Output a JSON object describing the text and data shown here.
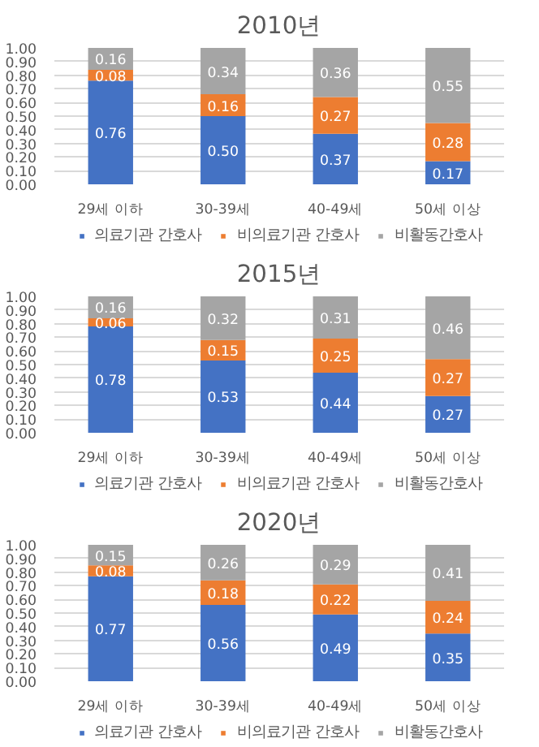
{
  "chart_data": [
    {
      "type": "bar",
      "title": "2010년",
      "stacked": true,
      "grid": "y",
      "legend": "bottom",
      "categories": [
        "29세 이하",
        "30-39세",
        "40-49세",
        "50세 이상"
      ],
      "ylim": [
        0,
        1
      ],
      "yticks": [
        {
          "value": 0,
          "label": "0.00"
        },
        {
          "value": 0.1,
          "label": "0.10"
        },
        {
          "value": 0.2,
          "label": "0.20"
        },
        {
          "value": 0.3,
          "label": "0.30"
        },
        {
          "value": 0.4,
          "label": "0.40"
        },
        {
          "value": 0.5,
          "label": "0.50"
        },
        {
          "value": 0.6,
          "label": "0.60"
        },
        {
          "value": 0.7,
          "label": "0.70"
        },
        {
          "value": 0.8,
          "label": "0.80"
        },
        {
          "value": 0.9,
          "label": "0.90"
        },
        {
          "value": 1,
          "label": "1.00"
        }
      ],
      "series": [
        {
          "name": "의료기관 간호사",
          "color": "#4472c4",
          "values": [
            0.76,
            0.5,
            0.37,
            0.17
          ],
          "value_labels": [
            "0.76",
            "0.50",
            "0.37",
            "0.17"
          ]
        },
        {
          "name": "비의료기관 간호사",
          "color": "#ed7d31",
          "values": [
            0.08,
            0.16,
            0.27,
            0.28
          ],
          "value_labels": [
            "0.08",
            "0.16",
            "0.27",
            "0.28"
          ]
        },
        {
          "name": "비활동간호사",
          "color": "#a5a5a5",
          "values": [
            0.16,
            0.34,
            0.36,
            0.55
          ],
          "value_labels": [
            "0.16",
            "0.34",
            "0.36",
            "0.55"
          ]
        }
      ]
    },
    {
      "type": "bar",
      "title": "2015년",
      "stacked": true,
      "grid": "y",
      "legend": "bottom",
      "categories": [
        "29세 이하",
        "30-39세",
        "40-49세",
        "50세 이상"
      ],
      "ylim": [
        0,
        1
      ],
      "yticks": [
        {
          "value": 0,
          "label": "0.00"
        },
        {
          "value": 0.1,
          "label": "0.10"
        },
        {
          "value": 0.2,
          "label": "0.20"
        },
        {
          "value": 0.3,
          "label": "0.30"
        },
        {
          "value": 0.4,
          "label": "0.40"
        },
        {
          "value": 0.5,
          "label": "0.50"
        },
        {
          "value": 0.6,
          "label": "0.60"
        },
        {
          "value": 0.7,
          "label": "0.70"
        },
        {
          "value": 0.8,
          "label": "0.80"
        },
        {
          "value": 0.9,
          "label": "0.90"
        },
        {
          "value": 1,
          "label": "1.00"
        }
      ],
      "series": [
        {
          "name": "의료기관 간호사",
          "color": "#4472c4",
          "values": [
            0.78,
            0.53,
            0.44,
            0.27
          ],
          "value_labels": [
            "0.78",
            "0.53",
            "0.44",
            "0.27"
          ]
        },
        {
          "name": "비의료기관 간호사",
          "color": "#ed7d31",
          "values": [
            0.06,
            0.15,
            0.25,
            0.27
          ],
          "value_labels": [
            "0.06",
            "0.15",
            "0.25",
            "0.27"
          ]
        },
        {
          "name": "비활동간호사",
          "color": "#a5a5a5",
          "values": [
            0.16,
            0.32,
            0.31,
            0.46
          ],
          "value_labels": [
            "0.16",
            "0.32",
            "0.31",
            "0.46"
          ]
        }
      ]
    },
    {
      "type": "bar",
      "title": "2020년",
      "stacked": true,
      "grid": "y",
      "legend": "bottom",
      "categories": [
        "29세 이하",
        "30-39세",
        "40-49세",
        "50세 이상"
      ],
      "ylim": [
        0,
        1
      ],
      "yticks": [
        {
          "value": 0,
          "label": "0.00"
        },
        {
          "value": 0.1,
          "label": "0.10"
        },
        {
          "value": 0.2,
          "label": "0.20"
        },
        {
          "value": 0.3,
          "label": "0.30"
        },
        {
          "value": 0.4,
          "label": "0.40"
        },
        {
          "value": 0.5,
          "label": "0.50"
        },
        {
          "value": 0.6,
          "label": "0.60"
        },
        {
          "value": 0.7,
          "label": "0.70"
        },
        {
          "value": 0.8,
          "label": "0.80"
        },
        {
          "value": 0.9,
          "label": "0.90"
        },
        {
          "value": 1,
          "label": "1.00"
        }
      ],
      "series": [
        {
          "name": "의료기관 간호사",
          "color": "#4472c4",
          "values": [
            0.77,
            0.56,
            0.49,
            0.35
          ],
          "value_labels": [
            "0.77",
            "0.56",
            "0.49",
            "0.35"
          ]
        },
        {
          "name": "비의료기관 간호사",
          "color": "#ed7d31",
          "values": [
            0.08,
            0.18,
            0.22,
            0.24
          ],
          "value_labels": [
            "0.08",
            "0.18",
            "0.22",
            "0.24"
          ]
        },
        {
          "name": "비활동간호사",
          "color": "#a5a5a5",
          "values": [
            0.15,
            0.26,
            0.29,
            0.41
          ],
          "value_labels": [
            "0.15",
            "0.26",
            "0.29",
            "0.41"
          ]
        }
      ]
    }
  ]
}
